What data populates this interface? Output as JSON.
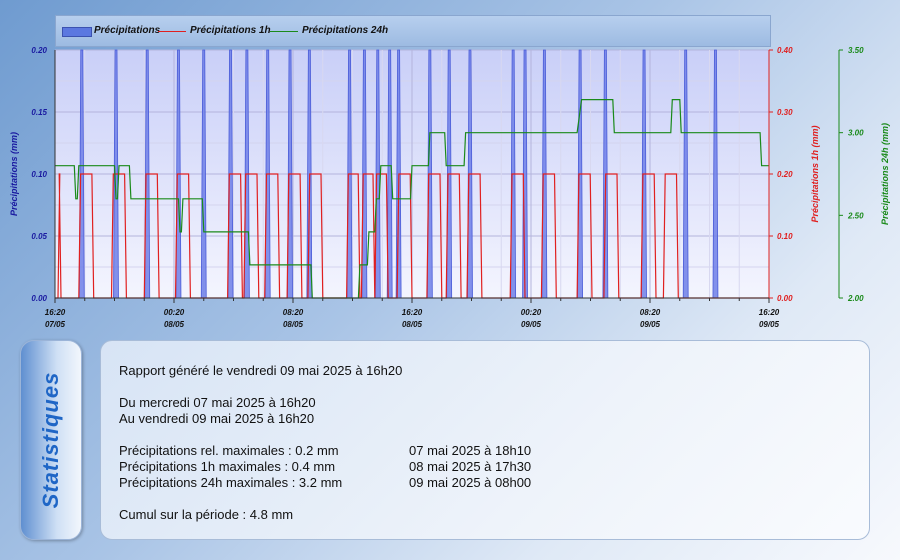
{
  "legend": {
    "items": [
      {
        "label": "Précipitations",
        "color": "#5b78e0"
      },
      {
        "label": "Précipitations 1h",
        "color": "#e02020"
      },
      {
        "label": "Précipitations 24h",
        "color": "#1a8a1a"
      }
    ]
  },
  "chart_data": {
    "type": "area",
    "x_ticks": [
      {
        "time": "16:20",
        "date": "07/05"
      },
      {
        "time": "00:20",
        "date": "08/05"
      },
      {
        "time": "08:20",
        "date": "08/05"
      },
      {
        "time": "16:20",
        "date": "08/05"
      },
      {
        "time": "00:20",
        "date": "09/05"
      },
      {
        "time": "08:20",
        "date": "09/05"
      },
      {
        "time": "16:20",
        "date": "09/05"
      }
    ],
    "x_range_hours": [
      0,
      48
    ],
    "axes": {
      "left": {
        "label": "Précipitations (mm)",
        "ticks": [
          "0.00",
          "0.05",
          "0.10",
          "0.15",
          "0.20"
        ],
        "range": [
          0,
          0.2
        ],
        "color": "#1a1aa0"
      },
      "right1": {
        "label": "Précipitations 1h (mm)",
        "ticks": [
          "0.00",
          "0.10",
          "0.20",
          "0.30",
          "0.40"
        ],
        "range": [
          0,
          0.4
        ],
        "color": "#e02020"
      },
      "right2": {
        "label": "Précipitations 24h (mm)",
        "ticks": [
          "2.00",
          "2.50",
          "3.00",
          "3.50"
        ],
        "range": [
          2,
          3.5
        ],
        "color": "#1a8a1a"
      }
    },
    "grid": true,
    "series": [
      {
        "name": "Précipitations",
        "axis": "left",
        "x_hours": [
          1.8,
          4.1,
          6.2,
          8.3,
          10.0,
          11.8,
          12.9,
          14.3,
          15.8,
          17.1,
          19.8,
          20.8,
          21.7,
          22.5,
          23.1,
          25.2,
          26.5,
          27.9,
          30.8,
          31.6,
          32.9,
          35.3,
          37.0,
          39.6,
          42.4,
          44.4
        ],
        "values": [
          0.2,
          0.2,
          0.2,
          0.2,
          0.2,
          0.2,
          0.2,
          0.2,
          0.2,
          0.2,
          0.2,
          0.2,
          0.2,
          0.2,
          0.2,
          0.2,
          0.2,
          0.2,
          0.2,
          0.2,
          0.2,
          0.2,
          0.2,
          0.2,
          0.2,
          0.2
        ]
      },
      {
        "name": "Précipitations 1h",
        "axis": "right1",
        "pulses": [
          [
            0.2,
            0.4,
            0.2
          ],
          [
            1.6,
            2.6,
            0.2
          ],
          [
            3.8,
            4.8,
            0.2
          ],
          [
            6.0,
            7.0,
            0.2
          ],
          [
            8.1,
            9.1,
            0.2
          ],
          [
            11.6,
            12.6,
            0.2
          ],
          [
            12.7,
            13.7,
            0.2
          ],
          [
            14.1,
            15.1,
            0.2
          ],
          [
            15.6,
            16.6,
            0.2
          ],
          [
            17.0,
            18.0,
            0.2
          ],
          [
            19.6,
            20.5,
            0.2
          ],
          [
            20.6,
            21.5,
            0.2
          ],
          [
            21.5,
            22.4,
            0.2
          ],
          [
            23.0,
            24.0,
            0.2
          ],
          [
            25.0,
            26.0,
            0.2
          ],
          [
            26.3,
            27.3,
            0.2
          ],
          [
            27.7,
            28.7,
            0.2
          ],
          [
            30.6,
            31.6,
            0.2
          ],
          [
            32.7,
            33.7,
            0.2
          ],
          [
            35.1,
            36.1,
            0.2
          ],
          [
            36.9,
            37.9,
            0.2
          ],
          [
            39.4,
            40.4,
            0.2
          ],
          [
            40.9,
            41.9,
            0.2
          ]
        ],
        "peaks": [
          [
            20.6,
            0.4
          ],
          [
            22.5,
            0.4
          ]
        ]
      },
      {
        "name": "Précipitations 24h",
        "axis": "right2",
        "x_hours": [
          0.0,
          1.3,
          1.4,
          1.5,
          1.6,
          4.0,
          4.1,
          4.2,
          4.3,
          5.0,
          5.1,
          6.4,
          6.5,
          8.3,
          8.4,
          8.5,
          8.6,
          9.9,
          10.0,
          12.0,
          12.1,
          13.0,
          13.1,
          16.0,
          16.1,
          16.3,
          16.4,
          17.2,
          17.3,
          20.4,
          20.5,
          20.6,
          21.0,
          21.1,
          21.5,
          21.6,
          21.8,
          21.9,
          22.6,
          22.7,
          23.9,
          24.0,
          24.1,
          25.1,
          25.2,
          25.3,
          26.2,
          26.3,
          27.5,
          27.6,
          35.0,
          35.1,
          35.4,
          35.5,
          37.5,
          37.6,
          37.7,
          37.8,
          41.4,
          41.5,
          41.6,
          42.0,
          42.1,
          47.4,
          47.5,
          48.0
        ],
        "values": [
          2.8,
          2.8,
          2.6,
          2.6,
          2.8,
          2.8,
          2.6,
          2.6,
          2.8,
          2.8,
          2.6,
          2.6,
          2.6,
          2.6,
          2.4,
          2.4,
          2.6,
          2.6,
          2.4,
          2.4,
          2.4,
          2.4,
          2.2,
          2.2,
          2.2,
          2.2,
          2.2,
          2.2,
          2.0,
          2.0,
          2.2,
          2.2,
          2.2,
          2.4,
          2.4,
          2.6,
          2.6,
          2.8,
          2.8,
          2.6,
          2.6,
          2.8,
          2.8,
          2.8,
          3.0,
          3.0,
          3.0,
          2.8,
          2.8,
          3.0,
          3.0,
          3.0,
          3.2,
          3.2,
          3.2,
          3.0,
          3.0,
          3.0,
          3.0,
          3.2,
          3.2,
          3.2,
          3.0,
          3.0,
          2.8,
          2.8
        ]
      }
    ]
  },
  "stats": {
    "tab_label": "Statistiques",
    "report": "Rapport généré le vendredi 09 mai 2025 à 16h20",
    "from": "Du mercredi 07 mai 2025 à 16h20",
    "to": "Au vendredi 09 mai 2025 à 16h20",
    "rows": [
      {
        "label": "Précipitations rel. maximales : 0.2 mm",
        "when": "07 mai 2025 à 18h10"
      },
      {
        "label": "Précipitations 1h maximales : 0.4 mm",
        "when": "08 mai 2025 à 17h30"
      },
      {
        "label": "Précipitations 24h maximales : 3.2 mm",
        "when": "09 mai 2025 à 08h00"
      }
    ],
    "cumul": "Cumul sur la période : 4.8 mm"
  }
}
